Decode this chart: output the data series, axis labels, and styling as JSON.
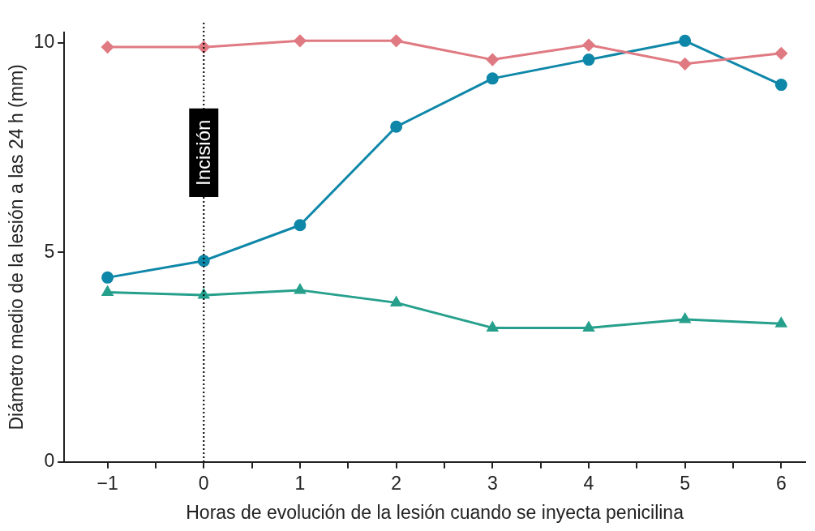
{
  "chart_data": {
    "type": "line",
    "xlabel": "Horas de evolución de la lesión cuando se inyecta penicilina",
    "ylabel": "Diámetro medio de la lesión a las 24 h (mm)",
    "x": [
      -1,
      0,
      1,
      2,
      3,
      4,
      5,
      6
    ],
    "series": [
      {
        "color": "#e07a82",
        "marker": "diamond",
        "values": [
          9.9,
          9.9,
          10.05,
          10.05,
          9.6,
          9.95,
          9.5,
          9.75
        ]
      },
      {
        "color": "#0e87a8",
        "marker": "circle",
        "values": [
          4.4,
          4.8,
          5.65,
          8.0,
          9.15,
          9.6,
          10.05,
          9.0
        ]
      },
      {
        "color": "#26a08c",
        "marker": "triangle",
        "values": [
          4.05,
          3.98,
          4.1,
          3.8,
          3.2,
          3.2,
          3.4,
          3.3
        ]
      }
    ],
    "xlim": [
      -1.45,
      6.25
    ],
    "xticks": [
      -1,
      {
        "value": -0.5,
        "label": null
      },
      0,
      {
        "value": 0.5,
        "label": null
      },
      1,
      {
        "value": 1.5,
        "label": null
      },
      2,
      {
        "value": 2.5,
        "label": null
      },
      3,
      {
        "value": 3.5,
        "label": null
      },
      4,
      {
        "value": 4.5,
        "label": null
      },
      5,
      {
        "value": 5.5,
        "label": null
      },
      6
    ],
    "ylim": [
      0,
      10.25
    ],
    "yticks": [
      0,
      5,
      10
    ],
    "ref_lines": [
      {
        "axis": "x",
        "value": 0,
        "label": "Incisión",
        "color": "#000000",
        "line_style": "dotted"
      }
    ],
    "grid": false,
    "legend": false
  }
}
